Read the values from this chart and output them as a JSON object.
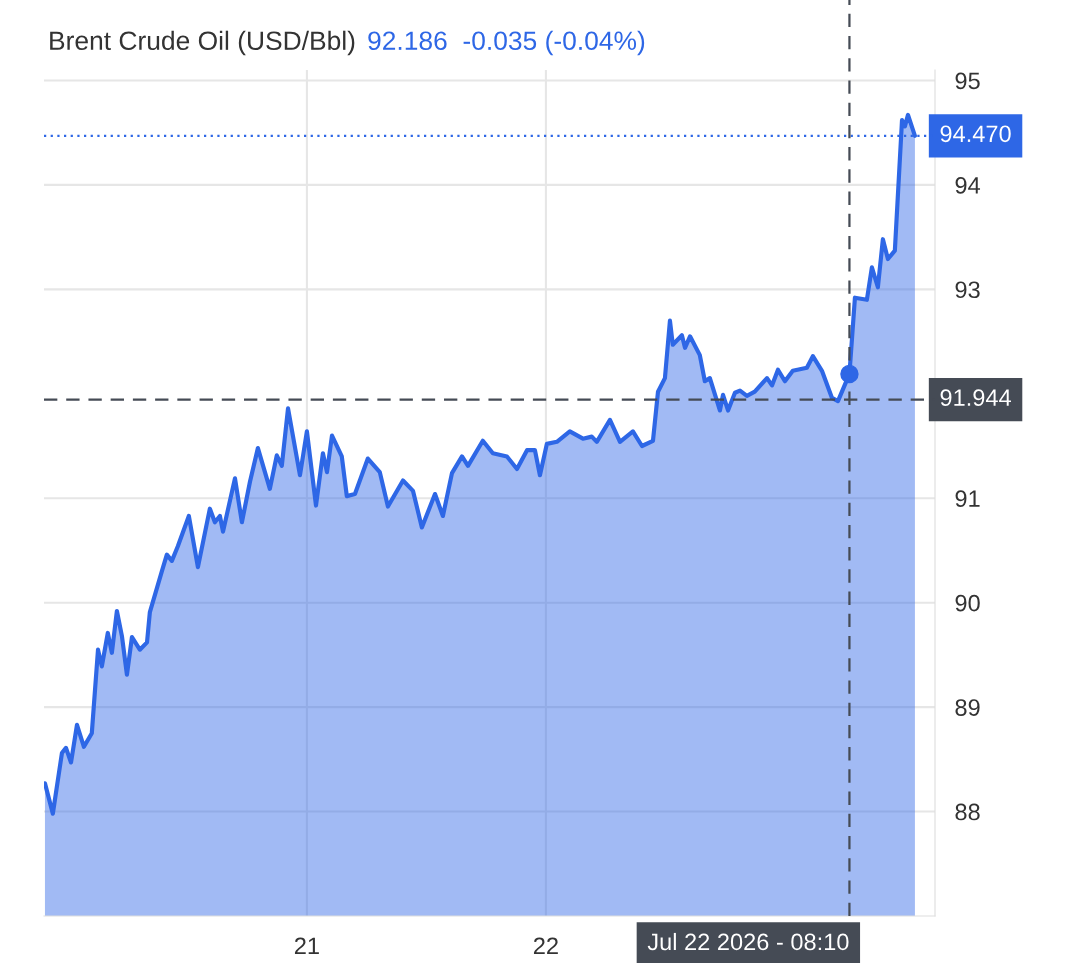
{
  "chart_data": {
    "type": "area",
    "title": "Brent Crude Oil (USD/Bbl)",
    "subtitle": "92.186  -0.035 (-0.04%)",
    "xlim": [
      19.9,
      23.628
    ],
    "xticks": [
      {
        "value": 21,
        "label": "21"
      },
      {
        "value": 22,
        "label": "22"
      }
    ],
    "ylim": [
      87,
      95.1
    ],
    "yticks": [
      88,
      89,
      90,
      91,
      93,
      94,
      95
    ],
    "grid": true,
    "annotations": [
      "Jul 22 2026 - 08:10"
    ],
    "series": [
      {
        "color": "#2e67e6",
        "x": [
          19.904,
          19.937,
          19.975,
          19.992,
          20.013,
          20.038,
          20.067,
          20.1,
          20.126,
          20.142,
          20.167,
          20.184,
          20.205,
          20.226,
          20.247,
          20.268,
          20.301,
          20.331,
          20.343,
          20.393,
          20.414,
          20.435,
          20.46,
          20.506,
          20.544,
          20.594,
          20.615,
          20.636,
          20.649,
          20.699,
          20.728,
          20.762,
          20.795,
          20.845,
          20.874,
          20.895,
          20.921,
          20.971,
          21.0,
          21.038,
          21.067,
          21.084,
          21.105,
          21.146,
          21.167,
          21.201,
          21.255,
          21.305,
          21.339,
          21.402,
          21.444,
          21.481,
          21.536,
          21.569,
          21.607,
          21.649,
          21.674,
          21.736,
          21.778,
          21.837,
          21.879,
          21.921,
          21.954,
          21.975,
          22.004,
          22.046,
          22.1,
          22.155,
          22.192,
          22.213,
          22.268,
          22.31,
          22.364,
          22.402,
          22.448,
          22.469,
          22.498,
          22.519,
          22.531,
          22.569,
          22.582,
          22.603,
          22.644,
          22.665,
          22.686,
          22.728,
          22.741,
          22.762,
          22.791,
          22.812,
          22.841,
          22.874,
          22.925,
          22.946,
          22.971,
          23.0,
          23.033,
          23.092,
          23.117,
          23.155,
          23.197,
          23.222,
          23.27,
          23.293,
          23.343,
          23.364,
          23.389,
          23.41,
          23.431,
          23.46,
          23.49,
          23.502,
          23.515,
          23.544
        ],
        "values": [
          88.27,
          87.98,
          88.56,
          88.61,
          88.47,
          88.83,
          88.62,
          88.75,
          89.55,
          89.39,
          89.71,
          89.52,
          89.92,
          89.68,
          89.31,
          89.67,
          89.55,
          89.62,
          89.91,
          90.3,
          90.46,
          90.4,
          90.54,
          90.83,
          90.34,
          90.9,
          90.77,
          90.83,
          90.68,
          91.19,
          90.77,
          91.16,
          91.48,
          91.09,
          91.41,
          91.31,
          91.86,
          91.22,
          91.64,
          90.93,
          91.43,
          91.25,
          91.6,
          91.4,
          91.02,
          91.04,
          91.38,
          91.25,
          90.92,
          91.17,
          91.07,
          90.72,
          91.04,
          90.83,
          91.24,
          91.4,
          91.31,
          91.55,
          91.43,
          91.4,
          91.28,
          91.46,
          91.46,
          91.22,
          91.52,
          91.54,
          91.64,
          91.57,
          91.59,
          91.54,
          91.75,
          91.54,
          91.64,
          91.5,
          91.55,
          92.02,
          92.15,
          92.7,
          92.47,
          92.56,
          92.44,
          92.55,
          92.37,
          92.12,
          92.15,
          91.84,
          91.99,
          91.84,
          92.01,
          92.03,
          91.98,
          92.02,
          92.15,
          92.08,
          92.23,
          92.12,
          92.22,
          92.25,
          92.36,
          92.22,
          91.96,
          91.93,
          92.19,
          92.92,
          92.9,
          93.21,
          93.02,
          93.48,
          93.29,
          93.37,
          94.62,
          94.56,
          94.67,
          94.47
        ]
      },
      {
        "type": "scatter",
        "color": "#2e67e6",
        "marker": "circle",
        "x": [
          23.27
        ],
        "values": [
          92.19
        ]
      }
    ],
    "ref_lines": [
      {
        "axis": "y",
        "value": 94.47,
        "label": "94.470",
        "color": "#2e67e6",
        "line_style": "dotted"
      },
      {
        "axis": "y",
        "value": 91.944,
        "label": "91.944",
        "color": "#454b55",
        "line_style": "dashed"
      },
      {
        "axis": "x",
        "value": 23.27,
        "color": "#454b55",
        "line_style": "dashed"
      }
    ]
  }
}
